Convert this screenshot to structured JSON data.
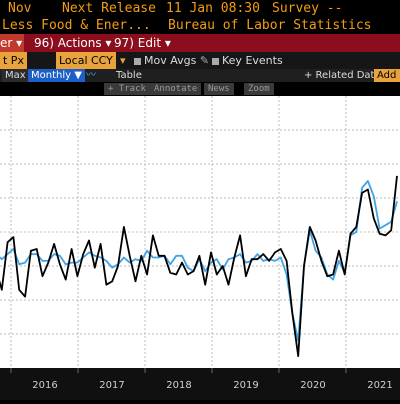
{
  "header": {
    "period": "Nov",
    "next_release_label": "Next Release",
    "next_release_value": "11 Jan 08:30",
    "survey_label": "Survey --",
    "title_fragment": "Less Food & Ener...",
    "source": "Bureau of Labor Statistics"
  },
  "toolbar": {
    "left_fragment": "er ▾",
    "actions_num": "96)",
    "actions_label": "Actions ▾",
    "edit_num": "97)",
    "edit_label": "Edit ▾"
  },
  "settings": {
    "field_fragment": "t Px",
    "currency": "Local CCY",
    "mov_avgs": "Mov Avgs",
    "key_events": "Key Events"
  },
  "controls": {
    "max": "Max",
    "frequency": "Monthly ▼",
    "table": "Table",
    "related": "+ Related Dat",
    "add": "Add I"
  },
  "subtools": [
    "+ Track",
    "Annotate",
    "News",
    "Zoom"
  ],
  "chart_data": {
    "type": "line",
    "x_ticks": [
      "2016",
      "2017",
      "2018",
      "2019",
      "2020",
      "2021"
    ],
    "ylim": [
      -0.4,
      1.2
    ],
    "grid": true,
    "series": [
      {
        "color": "#000000",
        "values": [
          0.18,
          0.06,
          0.34,
          0.37,
          0.06,
          0.02,
          0.29,
          0.3,
          0.14,
          0.22,
          0.33,
          0.21,
          0.12,
          0.3,
          0.14,
          0.27,
          0.35,
          0.19,
          0.33,
          0.09,
          0.11,
          0.2,
          0.43,
          0.26,
          0.11,
          0.26,
          0.15,
          0.38,
          0.26,
          0.26,
          0.16,
          0.15,
          0.22,
          0.15,
          0.17,
          0.26,
          0.09,
          0.28,
          0.15,
          0.2,
          0.09,
          0.25,
          0.38,
          0.14,
          0.24,
          0.24,
          0.27,
          0.23,
          0.28,
          0.3,
          0.23,
          -0.08,
          -0.33,
          0.2,
          0.43,
          0.35,
          0.23,
          0.14,
          0.15,
          0.29,
          0.15,
          0.39,
          0.43,
          0.63,
          0.65,
          0.48,
          0.39,
          0.38,
          0.41,
          0.73
        ]
      },
      {
        "color": "#3fa3e6",
        "values": [
          0.27,
          0.24,
          0.27,
          0.3,
          0.21,
          0.22,
          0.27,
          0.27,
          0.23,
          0.23,
          0.27,
          0.26,
          0.21,
          0.22,
          0.22,
          0.25,
          0.28,
          0.26,
          0.25,
          0.23,
          0.19,
          0.21,
          0.25,
          0.22,
          0.24,
          0.23,
          0.29,
          0.25,
          0.25,
          0.26,
          0.21,
          0.26,
          0.26,
          0.19,
          0.17,
          0.24,
          0.17,
          0.22,
          0.24,
          0.18,
          0.24,
          0.25,
          0.27,
          0.22,
          0.23,
          0.27,
          0.23,
          0.24,
          0.23,
          0.25,
          0.15,
          -0.08,
          -0.24,
          0.2,
          0.41,
          0.29,
          0.25,
          0.15,
          0.12,
          0.23,
          0.16,
          0.38,
          0.4,
          0.66,
          0.7,
          0.61,
          0.42,
          0.44,
          0.46,
          0.58
        ]
      }
    ]
  }
}
